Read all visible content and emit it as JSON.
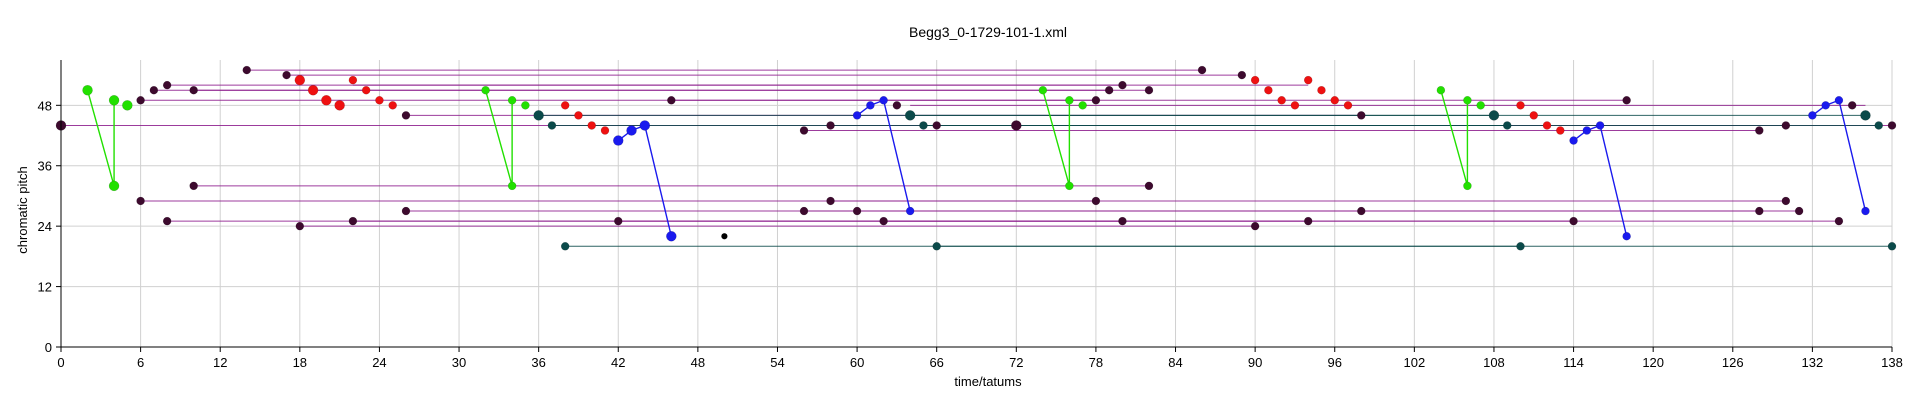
{
  "chart_data": {
    "type": "scatter",
    "title": "Begg3_0-1729-101-1.xml",
    "xlabel": "time/tatums",
    "ylabel": "chromatic pitch",
    "xlim": [
      0,
      138
    ],
    "ylim": [
      0,
      57
    ],
    "x_ticks": [
      0,
      6,
      12,
      18,
      24,
      30,
      36,
      42,
      48,
      54,
      60,
      66,
      72,
      78,
      84,
      90,
      96,
      102,
      108,
      114,
      120,
      126,
      132,
      138
    ],
    "y_ticks": [
      0,
      12,
      24,
      36,
      48
    ],
    "grid": true,
    "colors": {
      "purple": "#8b1a8b",
      "dark": "#3d0a2e",
      "teal": "#0b4a4a",
      "green": "#22e000",
      "red": "#ee1111",
      "blue": "#1a1aee",
      "black": "#000000"
    },
    "links": [
      {
        "from": [
          0,
          44
        ],
        "to": [
          72,
          44
        ],
        "color": "purple"
      },
      {
        "from": [
          72,
          44
        ],
        "to": [
          138,
          44
        ],
        "color": "purple"
      },
      {
        "from": [
          14,
          55
        ],
        "to": [
          86,
          55
        ],
        "color": "purple"
      },
      {
        "from": [
          17,
          54
        ],
        "to": [
          89,
          54
        ],
        "color": "purple"
      },
      {
        "from": [
          8,
          52
        ],
        "to": [
          80,
          52
        ],
        "color": "purple"
      },
      {
        "from": [
          22,
          52
        ],
        "to": [
          94,
          52
        ],
        "color": "purple"
      },
      {
        "from": [
          7,
          51
        ],
        "to": [
          82,
          51
        ],
        "color": "purple"
      },
      {
        "from": [
          10,
          51
        ],
        "to": [
          79,
          51
        ],
        "color": "purple"
      },
      {
        "from": [
          6,
          49
        ],
        "to": [
          78,
          49
        ],
        "color": "purple"
      },
      {
        "from": [
          46,
          49
        ],
        "to": [
          118,
          49
        ],
        "color": "purple"
      },
      {
        "from": [
          26,
          46
        ],
        "to": [
          98,
          46
        ],
        "color": "purple"
      },
      {
        "from": [
          64,
          48
        ],
        "to": [
          136,
          48
        ],
        "color": "purple"
      },
      {
        "from": [
          58,
          44
        ],
        "to": [
          130,
          44
        ],
        "color": "purple"
      },
      {
        "from": [
          56,
          43
        ],
        "to": [
          128,
          43
        ],
        "color": "purple"
      },
      {
        "from": [
          36,
          46
        ],
        "to": [
          108,
          46
        ],
        "color": "teal"
      },
      {
        "from": [
          64,
          46
        ],
        "to": [
          136,
          46
        ],
        "color": "teal"
      },
      {
        "from": [
          37,
          44
        ],
        "to": [
          109,
          44
        ],
        "color": "teal"
      },
      {
        "from": [
          65,
          44
        ],
        "to": [
          137,
          44
        ],
        "color": "teal"
      },
      {
        "from": [
          10,
          32
        ],
        "to": [
          82,
          32
        ],
        "color": "purple"
      },
      {
        "from": [
          6,
          29
        ],
        "to": [
          78,
          29
        ],
        "color": "purple"
      },
      {
        "from": [
          58,
          29
        ],
        "to": [
          130,
          29
        ],
        "color": "purple"
      },
      {
        "from": [
          26,
          27
        ],
        "to": [
          98,
          27
        ],
        "color": "purple"
      },
      {
        "from": [
          56,
          27
        ],
        "to": [
          128,
          27
        ],
        "color": "purple"
      },
      {
        "from": [
          60,
          27
        ],
        "to": [
          131,
          27
        ],
        "color": "purple"
      },
      {
        "from": [
          8,
          25
        ],
        "to": [
          80,
          25
        ],
        "color": "purple"
      },
      {
        "from": [
          22,
          25
        ],
        "to": [
          94,
          25
        ],
        "color": "purple"
      },
      {
        "from": [
          42,
          25
        ],
        "to": [
          114,
          25
        ],
        "color": "purple"
      },
      {
        "from": [
          62,
          25
        ],
        "to": [
          134,
          25
        ],
        "color": "purple"
      },
      {
        "from": [
          18,
          24
        ],
        "to": [
          90,
          24
        ],
        "color": "purple"
      },
      {
        "from": [
          38,
          20
        ],
        "to": [
          110,
          20
        ],
        "color": "teal"
      },
      {
        "from": [
          66,
          20
        ],
        "to": [
          138,
          20
        ],
        "color": "teal"
      }
    ],
    "series": [
      {
        "color": "green",
        "points": [
          [
            2,
            51,
            5
          ],
          [
            4,
            49,
            5
          ],
          [
            4,
            32,
            5
          ],
          [
            5,
            48,
            5
          ]
        ],
        "path": [
          [
            2,
            51
          ],
          [
            4,
            32
          ],
          [
            4,
            49
          ]
        ]
      },
      {
        "color": "red",
        "points": [
          [
            18,
            53,
            5
          ],
          [
            19,
            51,
            5
          ],
          [
            20,
            49,
            5
          ],
          [
            21,
            48,
            5
          ],
          [
            22,
            53,
            4
          ],
          [
            23,
            51,
            4
          ],
          [
            24,
            49,
            4
          ],
          [
            25,
            48,
            4
          ]
        ]
      },
      {
        "color": "green",
        "points": [
          [
            32,
            51,
            4
          ],
          [
            34,
            49,
            4
          ],
          [
            34,
            32,
            4
          ],
          [
            35,
            48,
            4
          ]
        ],
        "path": [
          [
            32,
            51
          ],
          [
            34,
            32
          ],
          [
            34,
            49
          ]
        ]
      },
      {
        "color": "red",
        "points": [
          [
            38,
            48,
            4
          ],
          [
            39,
            46,
            4
          ],
          [
            40,
            44,
            4
          ],
          [
            41,
            43,
            4
          ]
        ]
      },
      {
        "color": "blue",
        "points": [
          [
            42,
            41,
            5
          ],
          [
            43,
            43,
            5
          ],
          [
            44,
            44,
            5
          ],
          [
            46,
            22,
            5
          ]
        ],
        "path": [
          [
            42,
            41
          ],
          [
            43,
            43
          ],
          [
            44,
            44
          ],
          [
            46,
            22
          ]
        ]
      },
      {
        "color": "blue",
        "points": [
          [
            60,
            46,
            4
          ],
          [
            61,
            48,
            4
          ],
          [
            62,
            49,
            4
          ],
          [
            64,
            27,
            4
          ]
        ],
        "path": [
          [
            60,
            46
          ],
          [
            61,
            48
          ],
          [
            62,
            49
          ],
          [
            64,
            27
          ]
        ]
      },
      {
        "color": "green",
        "points": [
          [
            74,
            51,
            4
          ],
          [
            76,
            49,
            4
          ],
          [
            76,
            32,
            4
          ],
          [
            77,
            48,
            4
          ]
        ],
        "path": [
          [
            74,
            51
          ],
          [
            76,
            32
          ],
          [
            76,
            49
          ]
        ]
      },
      {
        "color": "red",
        "points": [
          [
            90,
            53,
            4
          ],
          [
            91,
            51,
            4
          ],
          [
            92,
            49,
            4
          ],
          [
            93,
            48,
            4
          ],
          [
            94,
            53,
            4
          ],
          [
            95,
            51,
            4
          ],
          [
            96,
            49,
            4
          ],
          [
            97,
            48,
            4
          ]
        ]
      },
      {
        "color": "green",
        "points": [
          [
            104,
            51,
            4
          ],
          [
            106,
            49,
            4
          ],
          [
            106,
            32,
            4
          ],
          [
            107,
            48,
            4
          ]
        ],
        "path": [
          [
            104,
            51
          ],
          [
            106,
            32
          ],
          [
            106,
            49
          ]
        ]
      },
      {
        "color": "red",
        "points": [
          [
            110,
            48,
            4
          ],
          [
            111,
            46,
            4
          ],
          [
            112,
            44,
            4
          ],
          [
            113,
            43,
            4
          ]
        ]
      },
      {
        "color": "blue",
        "points": [
          [
            114,
            41,
            4
          ],
          [
            115,
            43,
            4
          ],
          [
            116,
            44,
            4
          ],
          [
            118,
            22,
            4
          ]
        ],
        "path": [
          [
            114,
            41
          ],
          [
            115,
            43
          ],
          [
            116,
            44
          ],
          [
            118,
            22
          ]
        ]
      },
      {
        "color": "blue",
        "points": [
          [
            132,
            46,
            4
          ],
          [
            133,
            48,
            4
          ],
          [
            134,
            49,
            4
          ],
          [
            136,
            27,
            4
          ]
        ],
        "path": [
          [
            132,
            46
          ],
          [
            133,
            48
          ],
          [
            134,
            49
          ],
          [
            136,
            27
          ]
        ]
      },
      {
        "color": "dark",
        "points": [
          [
            0,
            44,
            5
          ],
          [
            72,
            44,
            5
          ],
          [
            138,
            44,
            4
          ],
          [
            14,
            55,
            4
          ],
          [
            86,
            55,
            4
          ],
          [
            17,
            54,
            4
          ],
          [
            89,
            54,
            4
          ],
          [
            8,
            52,
            4
          ],
          [
            80,
            52,
            4
          ],
          [
            7,
            51,
            4
          ],
          [
            82,
            51,
            4
          ],
          [
            10,
            51,
            4
          ],
          [
            79,
            51,
            4
          ],
          [
            6,
            49,
            4
          ],
          [
            78,
            49,
            4
          ],
          [
            46,
            49,
            4
          ],
          [
            118,
            49,
            4
          ],
          [
            26,
            46,
            4
          ],
          [
            98,
            46,
            4
          ],
          [
            63,
            48,
            4
          ],
          [
            135,
            48,
            4
          ],
          [
            58,
            44,
            4
          ],
          [
            130,
            44,
            4
          ],
          [
            56,
            43,
            4
          ],
          [
            128,
            43,
            4
          ],
          [
            66,
            44,
            4
          ],
          [
            10,
            32,
            4
          ],
          [
            82,
            32,
            4
          ],
          [
            6,
            29,
            4
          ],
          [
            78,
            29,
            4
          ],
          [
            58,
            29,
            4
          ],
          [
            130,
            29,
            4
          ],
          [
            26,
            27,
            4
          ],
          [
            98,
            27,
            4
          ],
          [
            56,
            27,
            4
          ],
          [
            128,
            27,
            4
          ],
          [
            60,
            27,
            4
          ],
          [
            131,
            27,
            4
          ],
          [
            8,
            25,
            4
          ],
          [
            80,
            25,
            4
          ],
          [
            22,
            25,
            4
          ],
          [
            94,
            25,
            4
          ],
          [
            42,
            25,
            4
          ],
          [
            114,
            25,
            4
          ],
          [
            62,
            25,
            4
          ],
          [
            134,
            25,
            4
          ],
          [
            18,
            24,
            4
          ],
          [
            90,
            24,
            4
          ]
        ]
      },
      {
        "color": "teal",
        "points": [
          [
            36,
            46,
            5
          ],
          [
            108,
            46,
            5
          ],
          [
            64,
            46,
            5
          ],
          [
            136,
            46,
            5
          ],
          [
            37,
            44,
            4
          ],
          [
            109,
            44,
            4
          ],
          [
            65,
            44,
            4
          ],
          [
            137,
            44,
            4
          ],
          [
            38,
            20,
            4
          ],
          [
            110,
            20,
            4
          ],
          [
            66,
            20,
            4
          ],
          [
            138,
            20,
            4
          ]
        ]
      },
      {
        "color": "black",
        "points": [
          [
            50,
            22,
            3
          ]
        ]
      }
    ]
  }
}
